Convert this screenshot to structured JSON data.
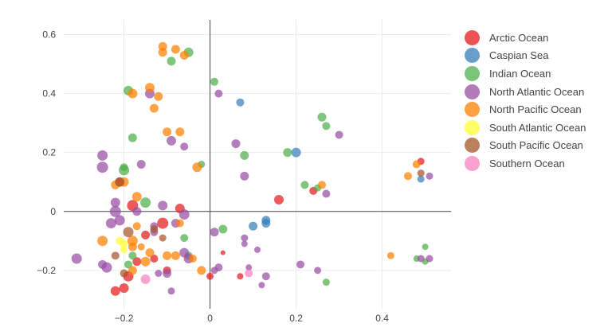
{
  "chart_data": {
    "type": "scatter",
    "title": "",
    "xlabel": "",
    "ylabel": "",
    "xlim": [
      -0.34,
      0.56
    ],
    "ylim": [
      -0.33,
      0.65
    ],
    "x_ticks": [
      "−0.2",
      "0",
      "0.2",
      "0.4"
    ],
    "x_tick_values": [
      -0.2,
      0,
      0.2,
      0.4
    ],
    "y_ticks": [
      "0.6",
      "0.4",
      "0.2",
      "0",
      "−0.2"
    ],
    "y_tick_values": [
      0.6,
      0.4,
      0.2,
      0,
      -0.2
    ],
    "grid": true,
    "legend_position": "right",
    "series": [
      {
        "name": "Arctic Ocean",
        "color": "#e41a1c",
        "points": [
          {
            "x": -0.18,
            "y": 0.02,
            "s": 14
          },
          {
            "x": -0.07,
            "y": 0.01,
            "s": 12
          },
          {
            "x": -0.11,
            "y": -0.04,
            "s": 14
          },
          {
            "x": -0.15,
            "y": -0.08,
            "s": 11
          },
          {
            "x": -0.19,
            "y": -0.22,
            "s": 13
          },
          {
            "x": -0.2,
            "y": -0.26,
            "s": 12
          },
          {
            "x": -0.22,
            "y": -0.27,
            "s": 12
          },
          {
            "x": -0.17,
            "y": -0.17,
            "s": 11
          },
          {
            "x": -0.13,
            "y": -0.16,
            "s": 10
          },
          {
            "x": 0.0,
            "y": -0.22,
            "s": 9
          },
          {
            "x": 0.03,
            "y": -0.14,
            "s": 6
          },
          {
            "x": 0.07,
            "y": -0.22,
            "s": 8
          },
          {
            "x": 0.16,
            "y": 0.04,
            "s": 12
          },
          {
            "x": 0.24,
            "y": 0.07,
            "s": 10
          },
          {
            "x": 0.49,
            "y": 0.17,
            "s": 9
          },
          {
            "x": -0.1,
            "y": -0.2,
            "s": 10
          },
          {
            "x": -0.21,
            "y": 0.1,
            "s": 11
          }
        ]
      },
      {
        "name": "Caspian Sea",
        "color": "#377eb8",
        "points": [
          {
            "x": 0.07,
            "y": 0.37,
            "s": 10
          },
          {
            "x": 0.2,
            "y": 0.2,
            "s": 12
          },
          {
            "x": 0.13,
            "y": -0.03,
            "s": 11
          },
          {
            "x": 0.13,
            "y": -0.04,
            "s": 11
          },
          {
            "x": 0.1,
            "y": -0.05,
            "s": 11
          },
          {
            "x": 0.49,
            "y": 0.11,
            "s": 9
          }
        ]
      },
      {
        "name": "Indian Ocean",
        "color": "#4daf4a",
        "points": [
          {
            "x": -0.05,
            "y": 0.54,
            "s": 12
          },
          {
            "x": -0.09,
            "y": 0.51,
            "s": 11
          },
          {
            "x": -0.19,
            "y": 0.41,
            "s": 12
          },
          {
            "x": 0.01,
            "y": 0.44,
            "s": 10
          },
          {
            "x": -0.18,
            "y": 0.25,
            "s": 11
          },
          {
            "x": -0.2,
            "y": 0.15,
            "s": 10
          },
          {
            "x": -0.2,
            "y": 0.14,
            "s": 13
          },
          {
            "x": -0.02,
            "y": 0.16,
            "s": 9
          },
          {
            "x": 0.08,
            "y": 0.19,
            "s": 11
          },
          {
            "x": 0.18,
            "y": 0.2,
            "s": 11
          },
          {
            "x": 0.26,
            "y": 0.32,
            "s": 11
          },
          {
            "x": 0.27,
            "y": 0.29,
            "s": 10
          },
          {
            "x": 0.22,
            "y": 0.09,
            "s": 10
          },
          {
            "x": 0.25,
            "y": 0.08,
            "s": 9
          },
          {
            "x": -0.15,
            "y": 0.03,
            "s": 13
          },
          {
            "x": -0.06,
            "y": -0.09,
            "s": 10
          },
          {
            "x": 0.03,
            "y": -0.06,
            "s": 11
          },
          {
            "x": -0.05,
            "y": -0.15,
            "s": 10
          },
          {
            "x": -0.18,
            "y": -0.15,
            "s": 10
          },
          {
            "x": 0.27,
            "y": -0.24,
            "s": 9
          },
          {
            "x": 0.5,
            "y": -0.12,
            "s": 8
          },
          {
            "x": 0.5,
            "y": -0.17,
            "s": 8
          },
          {
            "x": 0.48,
            "y": -0.16,
            "s": 8
          },
          {
            "x": -0.19,
            "y": -0.18,
            "s": 10
          }
        ]
      },
      {
        "name": "North Atlantic Ocean",
        "color": "#984ea3",
        "points": [
          {
            "x": -0.25,
            "y": 0.19,
            "s": 13
          },
          {
            "x": -0.25,
            "y": 0.15,
            "s": 14
          },
          {
            "x": -0.14,
            "y": 0.4,
            "s": 12
          },
          {
            "x": -0.09,
            "y": 0.24,
            "s": 12
          },
          {
            "x": -0.06,
            "y": 0.22,
            "s": 10
          },
          {
            "x": 0.02,
            "y": 0.4,
            "s": 10
          },
          {
            "x": 0.06,
            "y": 0.23,
            "s": 11
          },
          {
            "x": 0.08,
            "y": 0.12,
            "s": 11
          },
          {
            "x": 0.3,
            "y": 0.26,
            "s": 10
          },
          {
            "x": 0.27,
            "y": 0.06,
            "s": 10
          },
          {
            "x": 0.51,
            "y": 0.12,
            "s": 9
          },
          {
            "x": -0.16,
            "y": 0.16,
            "s": 11
          },
          {
            "x": -0.22,
            "y": 0.03,
            "s": 12
          },
          {
            "x": -0.22,
            "y": 0.0,
            "s": 14
          },
          {
            "x": -0.21,
            "y": -0.03,
            "s": 13
          },
          {
            "x": -0.23,
            "y": -0.04,
            "s": 13
          },
          {
            "x": -0.17,
            "y": 0.0,
            "s": 11
          },
          {
            "x": -0.11,
            "y": 0.02,
            "s": 12
          },
          {
            "x": -0.06,
            "y": -0.01,
            "s": 13
          },
          {
            "x": -0.13,
            "y": -0.05,
            "s": 10
          },
          {
            "x": -0.13,
            "y": -0.07,
            "s": 10
          },
          {
            "x": -0.08,
            "y": -0.04,
            "s": 11
          },
          {
            "x": 0.01,
            "y": -0.07,
            "s": 11
          },
          {
            "x": 0.08,
            "y": -0.09,
            "s": 9
          },
          {
            "x": 0.08,
            "y": -0.11,
            "s": 8
          },
          {
            "x": 0.11,
            "y": -0.13,
            "s": 8
          },
          {
            "x": -0.31,
            "y": -0.16,
            "s": 13
          },
          {
            "x": -0.24,
            "y": -0.19,
            "s": 13
          },
          {
            "x": -0.25,
            "y": -0.18,
            "s": 11
          },
          {
            "x": -0.1,
            "y": -0.21,
            "s": 11
          },
          {
            "x": -0.06,
            "y": -0.14,
            "s": 12
          },
          {
            "x": -0.05,
            "y": -0.16,
            "s": 12
          },
          {
            "x": 0.02,
            "y": -0.19,
            "s": 10
          },
          {
            "x": 0.01,
            "y": -0.2,
            "s": 9
          },
          {
            "x": 0.09,
            "y": -0.19,
            "s": 8
          },
          {
            "x": 0.13,
            "y": -0.22,
            "s": 10
          },
          {
            "x": 0.12,
            "y": -0.25,
            "s": 8
          },
          {
            "x": 0.21,
            "y": -0.18,
            "s": 10
          },
          {
            "x": 0.25,
            "y": -0.2,
            "s": 9
          },
          {
            "x": 0.49,
            "y": -0.16,
            "s": 9
          },
          {
            "x": 0.51,
            "y": -0.16,
            "s": 9
          },
          {
            "x": -0.09,
            "y": -0.27,
            "s": 9
          },
          {
            "x": -0.12,
            "y": -0.21,
            "s": 9
          }
        ]
      },
      {
        "name": "North Pacific Ocean",
        "color": "#ff7f00",
        "points": [
          {
            "x": -0.11,
            "y": 0.56,
            "s": 11
          },
          {
            "x": -0.11,
            "y": 0.54,
            "s": 11
          },
          {
            "x": -0.08,
            "y": 0.55,
            "s": 11
          },
          {
            "x": -0.06,
            "y": 0.53,
            "s": 11
          },
          {
            "x": -0.14,
            "y": 0.42,
            "s": 12
          },
          {
            "x": -0.18,
            "y": 0.4,
            "s": 12
          },
          {
            "x": -0.12,
            "y": 0.39,
            "s": 11
          },
          {
            "x": -0.13,
            "y": 0.35,
            "s": 11
          },
          {
            "x": -0.1,
            "y": 0.27,
            "s": 11
          },
          {
            "x": -0.07,
            "y": 0.27,
            "s": 11
          },
          {
            "x": -0.03,
            "y": 0.15,
            "s": 12
          },
          {
            "x": -0.2,
            "y": 0.1,
            "s": 12
          },
          {
            "x": -0.17,
            "y": 0.05,
            "s": 12
          },
          {
            "x": -0.07,
            "y": -0.04,
            "s": 10
          },
          {
            "x": -0.25,
            "y": -0.1,
            "s": 13
          },
          {
            "x": -0.18,
            "y": -0.1,
            "s": 13
          },
          {
            "x": -0.18,
            "y": -0.12,
            "s": 11
          },
          {
            "x": -0.14,
            "y": -0.14,
            "s": 11
          },
          {
            "x": -0.15,
            "y": -0.17,
            "s": 12
          },
          {
            "x": -0.18,
            "y": -0.2,
            "s": 11
          },
          {
            "x": -0.1,
            "y": -0.15,
            "s": 11
          },
          {
            "x": -0.08,
            "y": -0.15,
            "s": 11
          },
          {
            "x": -0.02,
            "y": -0.2,
            "s": 11
          },
          {
            "x": -0.04,
            "y": -0.16,
            "s": 10
          },
          {
            "x": -0.17,
            "y": -0.05,
            "s": 10
          },
          {
            "x": -0.16,
            "y": -0.12,
            "s": 9
          },
          {
            "x": 0.42,
            "y": -0.15,
            "s": 9
          },
          {
            "x": 0.46,
            "y": 0.12,
            "s": 10
          },
          {
            "x": 0.48,
            "y": 0.16,
            "s": 10
          },
          {
            "x": 0.26,
            "y": 0.09,
            "s": 10
          },
          {
            "x": -0.22,
            "y": 0.09,
            "s": 11
          }
        ]
      },
      {
        "name": "South Atlantic Ocean",
        "color": "#ffff33",
        "points": [
          {
            "x": -0.21,
            "y": -0.1,
            "s": 10
          },
          {
            "x": -0.2,
            "y": -0.11,
            "s": 10
          },
          {
            "x": -0.2,
            "y": -0.13,
            "s": 9
          }
        ]
      },
      {
        "name": "South Pacific Ocean",
        "color": "#a65628",
        "points": [
          {
            "x": -0.21,
            "y": 0.1,
            "s": 12
          },
          {
            "x": -0.19,
            "y": -0.07,
            "s": 13
          },
          {
            "x": -0.13,
            "y": -0.06,
            "s": 10
          },
          {
            "x": -0.11,
            "y": -0.09,
            "s": 9
          },
          {
            "x": -0.22,
            "y": -0.15,
            "s": 10
          },
          {
            "x": -0.2,
            "y": -0.21,
            "s": 10
          },
          {
            "x": 0.49,
            "y": 0.13,
            "s": 9
          }
        ]
      },
      {
        "name": "Southern Ocean",
        "color": "#f781bf",
        "points": [
          {
            "x": -0.15,
            "y": -0.23,
            "s": 12
          },
          {
            "x": 0.09,
            "y": -0.21,
            "s": 10
          }
        ]
      }
    ]
  }
}
